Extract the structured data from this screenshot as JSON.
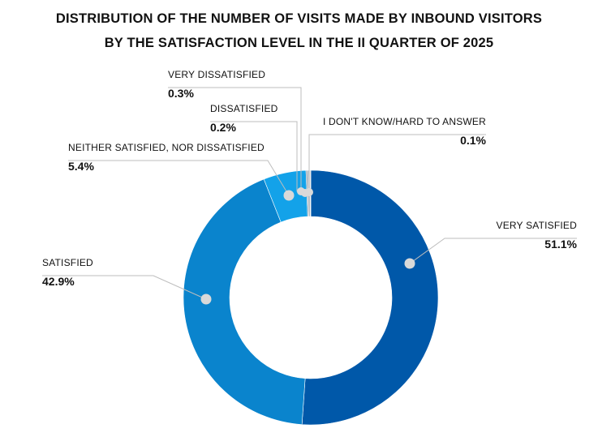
{
  "title_lines": [
    "DISTRIBUTION OF THE NUMBER OF VISITS MADE BY INBOUND VISITORS",
    "BY THE SATISFACTION LEVEL IN THE II QUARTER OF 2025"
  ],
  "chart_data": {
    "type": "pie",
    "variant": "donut",
    "unit": "%",
    "slices": [
      {
        "label": "VERY SATISFIED",
        "value": 51.1,
        "display": "51.1%",
        "color": "#0058a9"
      },
      {
        "label": "SATISFIED",
        "value": 42.9,
        "display": "42.9%",
        "color": "#0a84cd"
      },
      {
        "label": "NEITHER SATISFIED, NOR DISSATISFIED",
        "value": 5.4,
        "display": "5.4%",
        "color": "#13a2e9"
      },
      {
        "label": "DISSATISFIED",
        "value": 0.2,
        "display": "0.2%",
        "color": "#8c9aa6"
      },
      {
        "label": "VERY DISSATISFIED",
        "value": 0.3,
        "display": "0.3%",
        "color": "#a9b4bd"
      },
      {
        "label": "I DON'T KNOW/HARD TO ANSWER",
        "value": 0.1,
        "display": "0.1%",
        "color": "#c4c4c4"
      }
    ],
    "direction": "clockwise",
    "start": "top"
  }
}
